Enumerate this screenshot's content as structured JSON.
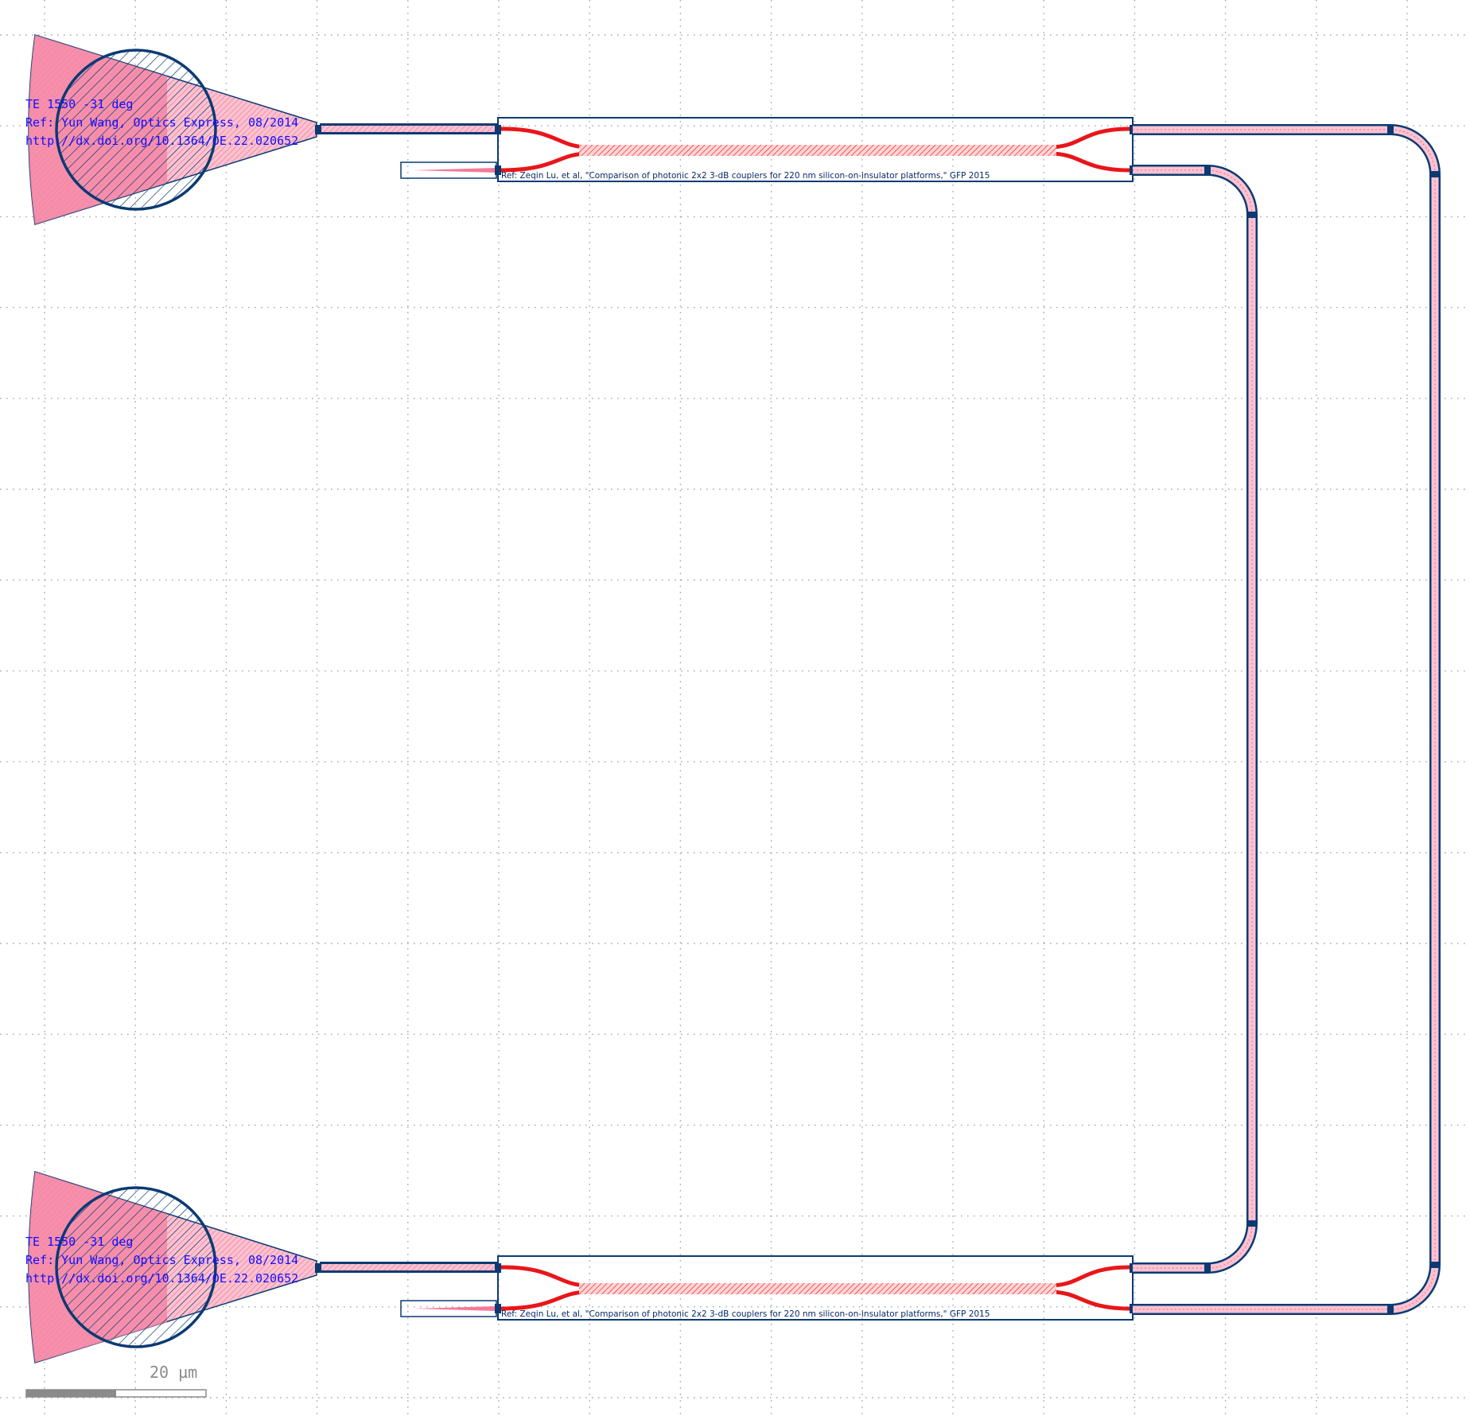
{
  "layout_view": {
    "grating_couplers": [
      {
        "id": "gc-top",
        "label_line1": "TE 1550 -31 deg",
        "label_line2": "Ref: Yun Wang, Optics Express, 08/2014",
        "label_line3": "http://dx.doi.org/10.1364/OE.22.020652"
      },
      {
        "id": "gc-bottom",
        "label_line1": "TE 1550 -31 deg",
        "label_line2": "Ref: Yun Wang, Optics Express, 08/2014",
        "label_line3": "http://dx.doi.org/10.1364/OE.22.020652"
      }
    ],
    "directional_couplers": [
      {
        "id": "dc-top",
        "ref_text": "Ref: Zeqin Lu, et al, \"Comparison of photonic 2x2 3-dB couplers for 220 nm silicon-on-insulator platforms,\" GFP 2015"
      },
      {
        "id": "dc-bottom",
        "ref_text": "Ref: Zeqin Lu, et al, \"Comparison of photonic 2x2 3-dB couplers for 220 nm silicon-on-insulator platforms,\" GFP 2015"
      }
    ],
    "scale_bar": {
      "label": "20 µm"
    },
    "colors": {
      "outline": "#0b3a73",
      "waveguide_fill": "#f47a9a",
      "coupler_core": "#e8161a",
      "label_text": "#1010ff",
      "grid_dot": "#9a9a9a"
    }
  }
}
